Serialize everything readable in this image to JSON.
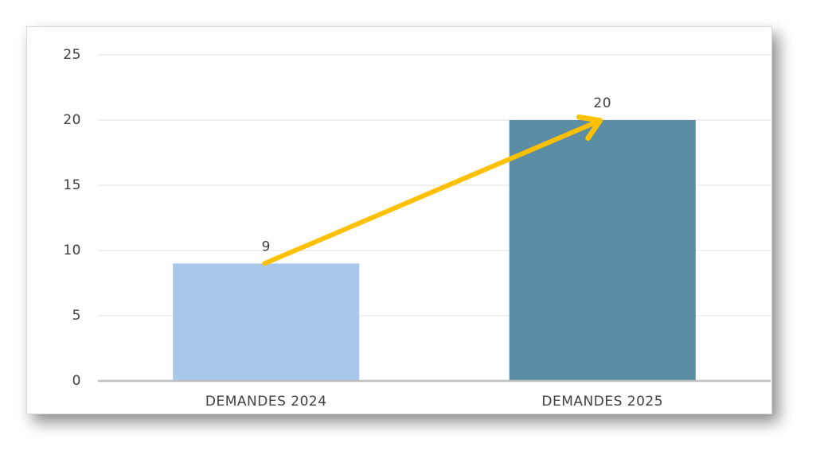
{
  "chart_data": {
    "type": "bar",
    "categories": [
      "DEMANDES 2024",
      "DEMANDES 2025"
    ],
    "values": [
      9,
      20
    ],
    "colors": [
      "#a8c8eb",
      "#5b8da5"
    ],
    "ylim": [
      0,
      25
    ],
    "yticks": [
      0,
      5,
      10,
      15,
      20,
      25
    ],
    "grid": true
  }
}
